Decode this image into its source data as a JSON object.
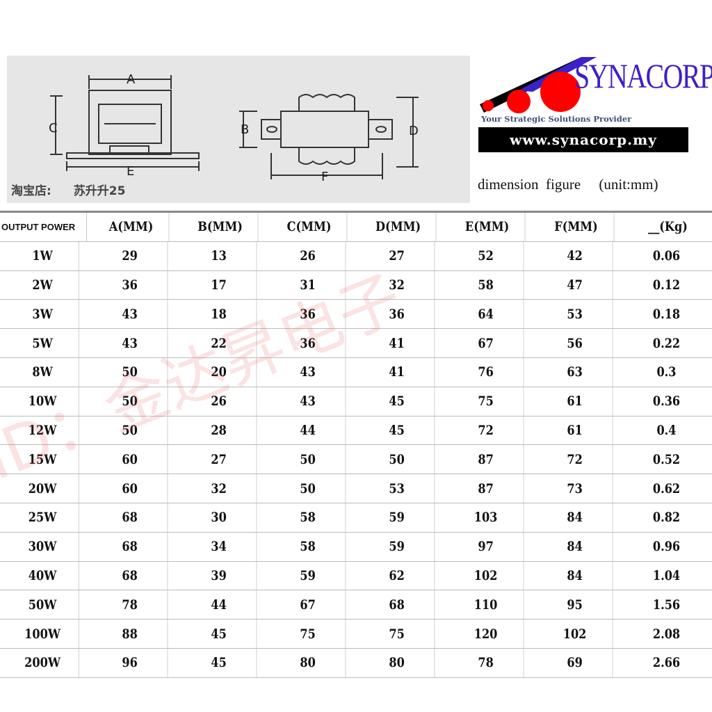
{
  "diagram": {
    "labels": [
      "A",
      "B",
      "C",
      "D",
      "E",
      "F"
    ],
    "shop_label": "淘宝店:",
    "shop_name": "苏升升25"
  },
  "logo": {
    "brand": "SYNACORP",
    "tagline": "Your Strategic Solutions Provider",
    "url": "www.synacorp.my",
    "colors": {
      "circles": "#ff0000",
      "brand_text": "#3a22c8",
      "bar": "#000000"
    }
  },
  "caption": {
    "title": "dimension  figure",
    "unit": "(unit:mm)"
  },
  "watermark": "ID：金达昇电子",
  "table": {
    "headers": [
      "OUTPUT POWER",
      "A(MM)",
      "B(MM)",
      "C(MM)",
      "D(MM)",
      "E(MM)",
      "F(MM)",
      "__(Kg)"
    ],
    "rows": [
      [
        "1W",
        "29",
        "13",
        "26",
        "27",
        "52",
        "42",
        "0.06"
      ],
      [
        "2W",
        "36",
        "17",
        "31",
        "32",
        "58",
        "47",
        "0.12"
      ],
      [
        "3W",
        "43",
        "18",
        "36",
        "36",
        "64",
        "53",
        "0.18"
      ],
      [
        "5W",
        "43",
        "22",
        "36",
        "41",
        "67",
        "56",
        "0.22"
      ],
      [
        "8W",
        "50",
        "20",
        "43",
        "41",
        "76",
        "63",
        "0.3"
      ],
      [
        "10W",
        "50",
        "26",
        "43",
        "45",
        "75",
        "61",
        "0.36"
      ],
      [
        "12W",
        "50",
        "28",
        "44",
        "45",
        "72",
        "61",
        "0.4"
      ],
      [
        "15W",
        "60",
        "27",
        "50",
        "50",
        "87",
        "72",
        "0.52"
      ],
      [
        "20W",
        "60",
        "32",
        "50",
        "53",
        "87",
        "73",
        "0.62"
      ],
      [
        "25W",
        "68",
        "30",
        "58",
        "59",
        "103",
        "84",
        "0.82"
      ],
      [
        "30W",
        "68",
        "34",
        "58",
        "59",
        "97",
        "84",
        "0.96"
      ],
      [
        "40W",
        "68",
        "39",
        "59",
        "62",
        "102",
        "84",
        "1.04"
      ],
      [
        "50W",
        "78",
        "44",
        "67",
        "68",
        "110",
        "95",
        "1.56"
      ],
      [
        "100W",
        "88",
        "45",
        "75",
        "75",
        "120",
        "102",
        "2.08"
      ],
      [
        "200W",
        "96",
        "45",
        "80",
        "80",
        "78",
        "69",
        "2.66"
      ]
    ]
  }
}
